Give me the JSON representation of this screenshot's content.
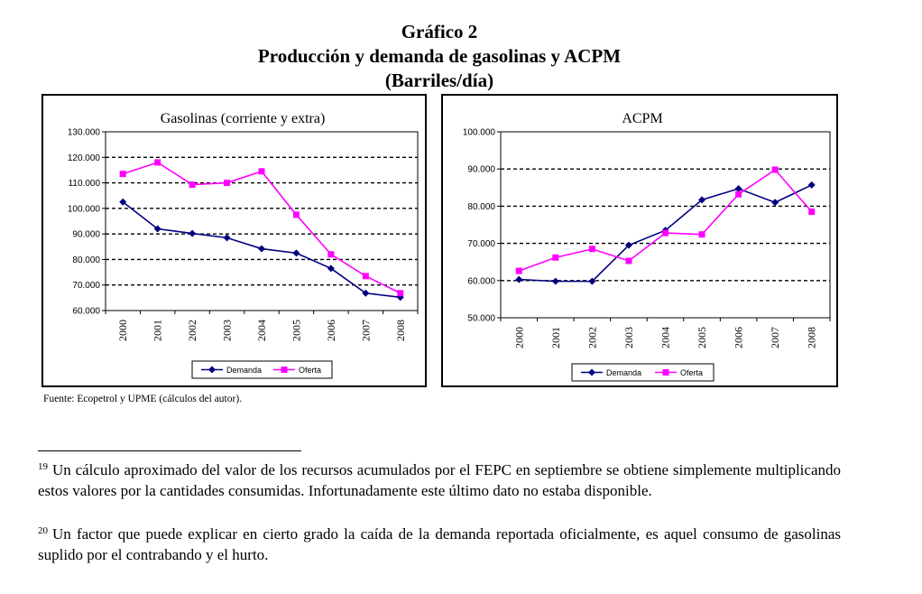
{
  "heading": {
    "line1": "Gráfico 2",
    "line2": "Producción y demanda de gasolinas y ACPM",
    "line3": "(Barriles/día)"
  },
  "chart_data": [
    {
      "type": "line",
      "title": "Gasolinas (corriente y extra)",
      "xlabel": "",
      "ylabel": "",
      "categories": [
        "2000",
        "2001",
        "2002",
        "2003",
        "2004",
        "2005",
        "2006",
        "2007",
        "2008"
      ],
      "ylim": [
        60000,
        130000
      ],
      "yticks": [
        60000,
        70000,
        80000,
        90000,
        100000,
        110000,
        120000,
        130000
      ],
      "ytick_labels": [
        "60.000",
        "70.000",
        "80.000",
        "90.000",
        "100.000",
        "110.000",
        "120.000",
        "130.000"
      ],
      "grid": "horizontal dashed",
      "legend": "bottom-center",
      "series": [
        {
          "name": "Demanda",
          "color": "#000080",
          "marker": "diamond",
          "values": [
            102500,
            92000,
            90200,
            88500,
            84200,
            82500,
            76500,
            66800,
            65200
          ]
        },
        {
          "name": "Oferta",
          "color": "#ff00ff",
          "marker": "square",
          "values": [
            113500,
            118000,
            109300,
            110000,
            114500,
            97500,
            82000,
            73500,
            66800
          ]
        }
      ]
    },
    {
      "type": "line",
      "title": "ACPM",
      "xlabel": "",
      "ylabel": "",
      "categories": [
        "2000",
        "2001",
        "2002",
        "2003",
        "2004",
        "2005",
        "2006",
        "2007",
        "2008"
      ],
      "ylim": [
        50000,
        100000
      ],
      "yticks": [
        50000,
        60000,
        70000,
        80000,
        90000,
        100000
      ],
      "ytick_labels": [
        "50.000",
        "60.000",
        "70.000",
        "80.000",
        "90.000",
        "100.000"
      ],
      "grid": "horizontal dashed",
      "legend": "bottom-center",
      "series": [
        {
          "name": "Demanda",
          "color": "#000080",
          "marker": "diamond",
          "values": [
            60300,
            59800,
            59800,
            69500,
            73500,
            81700,
            84700,
            81000,
            85700
          ]
        },
        {
          "name": "Oferta",
          "color": "#ff00ff",
          "marker": "square",
          "values": [
            62600,
            66200,
            68500,
            65300,
            72800,
            72400,
            83200,
            89800,
            78500
          ]
        }
      ]
    }
  ],
  "source": "Fuente: Ecopetrol y UPME (cálculos del autor).",
  "footnotes": [
    {
      "num": "19",
      "text": "Un cálculo aproximado del valor de los recursos acumulados por el FEPC en septiembre se obtiene simplemente multiplicando estos valores por la cantidades consumidas. Infortunadamente este último dato no estaba disponible."
    },
    {
      "num": "20",
      "text": "Un factor que puede explicar en cierto grado la caída de la demanda reportada oficialmente, es aquel consumo de gasolinas suplido por el contrabando y el hurto."
    }
  ]
}
